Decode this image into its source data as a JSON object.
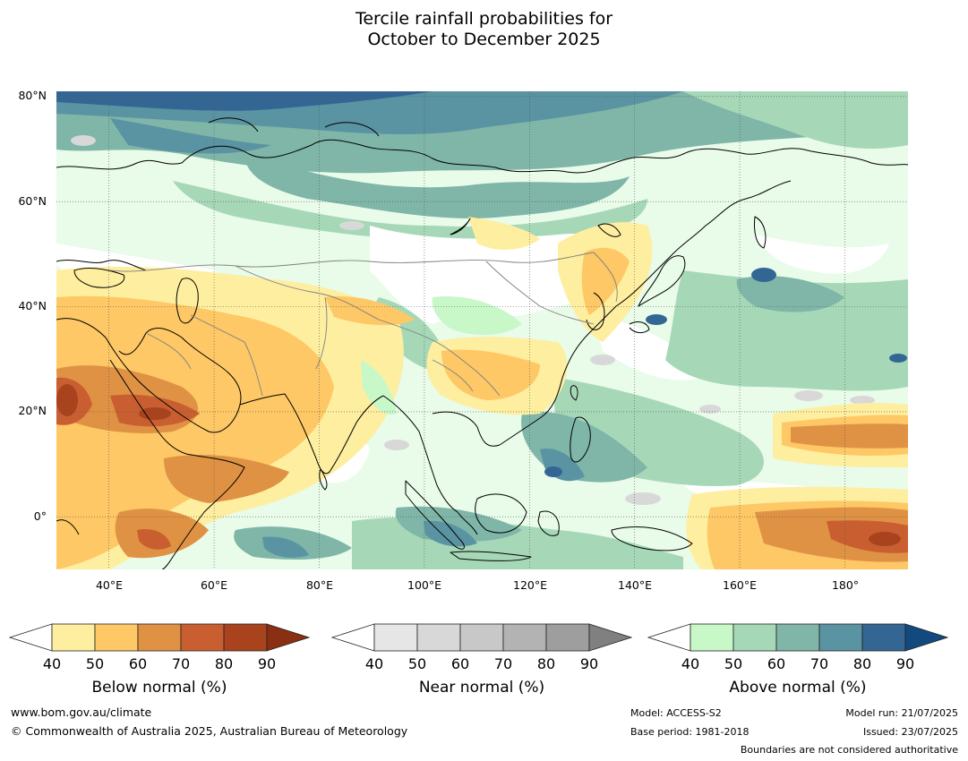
{
  "title": {
    "line1": "Tercile rainfall probabilities for",
    "line2": "October to December 2025"
  },
  "map": {
    "projection": "plate carree",
    "lon_range": [
      30,
      192
    ],
    "lat_range": [
      -10,
      81
    ],
    "lat_labels": [
      "80°N",
      "60°N",
      "40°N",
      "20°N",
      "0°"
    ],
    "lon_labels": [
      "40°E",
      "60°E",
      "80°E",
      "100°E",
      "120°E",
      "140°E",
      "160°E",
      "180°"
    ],
    "gridlines": "dotted",
    "ocean_color": "#ffffff",
    "coastline_color": "#000000",
    "border_color": "#808080"
  },
  "colorbars": [
    {
      "label": "Below normal (%)",
      "ticks": [
        "40",
        "50",
        "60",
        "70",
        "80",
        "90"
      ],
      "colors": [
        "#ffffff",
        "#feeea0",
        "#fdc865",
        "#e09244",
        "#c95f31",
        "#a8431e",
        "#8b2f12"
      ]
    },
    {
      "label": "Near normal (%)",
      "ticks": [
        "40",
        "50",
        "60",
        "70",
        "80",
        "90"
      ],
      "colors": [
        "#ffffff",
        "#e6e6e6",
        "#d8d8d8",
        "#c8c8c8",
        "#b3b3b3",
        "#9e9e9e",
        "#808080"
      ]
    },
    {
      "label": "Above normal (%)",
      "ticks": [
        "40",
        "50",
        "60",
        "70",
        "80",
        "90"
      ],
      "colors": [
        "#ffffff",
        "#c8f7c8",
        "#a6d8b8",
        "#7fb6a8",
        "#5a93a2",
        "#346694",
        "#124a80"
      ]
    }
  ],
  "footer": {
    "url": "www.bom.gov.au/climate",
    "copyright": "© Commonwealth of Australia 2025, Australian Bureau of Meteorology",
    "model": "Model: ACCESS-S2",
    "base_period": "Base period: 1981-2018",
    "model_run": "Model run: 21/07/2025",
    "issued": "Issued: 23/07/2025",
    "disclaimer": "Boundaries are not considered authoritative"
  }
}
